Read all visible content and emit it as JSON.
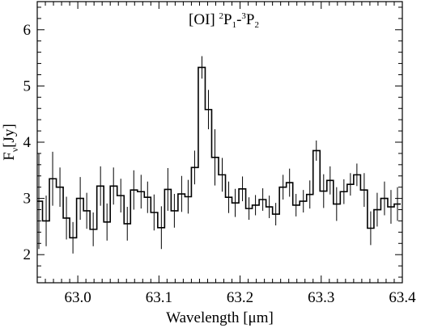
{
  "chart_data": {
    "type": "line",
    "style": "step-with-errorbars",
    "title": "",
    "xlabel": "Wavelength [μm]",
    "ylabel": "F",
    "ylabel_sub": "ν",
    "ylabel_unit": "[Jy]",
    "xlim": [
      62.95,
      63.4
    ],
    "ylim": [
      1.5,
      6.5
    ],
    "xticks": [
      63.0,
      63.1,
      63.2,
      63.3,
      63.4
    ],
    "xtick_labels": [
      "63.0",
      "63.1",
      "63.2",
      "63.3",
      "63.4"
    ],
    "yticks": [
      2,
      3,
      4,
      5,
      6
    ],
    "ytick_labels": [
      "2",
      "3",
      "4",
      "5",
      "6"
    ],
    "grid": false,
    "annotation": {
      "main": "[OI] ",
      "sup1": "2",
      "p1": "P",
      "sub1": "1",
      "dash": "-",
      "sup2": "3",
      "p2": "P",
      "sub2": "2",
      "x": 63.18,
      "y": 6.1
    },
    "series": [
      {
        "x": [
          62.952,
          62.961,
          62.969,
          62.978,
          62.986,
          62.994,
          63.003,
          63.011,
          63.019,
          63.028,
          63.036,
          63.044,
          63.053,
          63.061,
          63.069,
          63.078,
          63.086,
          63.094,
          63.103,
          63.111,
          63.119,
          63.128,
          63.136,
          63.144,
          63.153,
          63.161,
          63.169,
          63.178,
          63.186,
          63.194,
          63.203,
          63.211,
          63.219,
          63.228,
          63.236,
          63.244,
          63.253,
          63.261,
          63.269,
          63.278,
          63.286,
          63.294,
          63.303,
          63.311,
          63.319,
          63.328,
          63.336,
          63.344,
          63.353,
          63.361,
          63.369,
          63.378,
          63.386,
          63.394
        ],
        "y": [
          2.95,
          2.6,
          3.35,
          3.2,
          2.65,
          2.3,
          3.0,
          2.78,
          2.45,
          3.22,
          2.58,
          3.22,
          3.05,
          2.55,
          3.15,
          3.12,
          3.02,
          2.75,
          2.48,
          3.16,
          2.78,
          3.08,
          3.03,
          3.55,
          5.33,
          4.58,
          3.73,
          3.42,
          3.02,
          2.92,
          3.17,
          2.82,
          2.88,
          2.98,
          2.85,
          2.72,
          3.2,
          3.28,
          2.88,
          2.95,
          3.07,
          3.85,
          3.13,
          3.32,
          2.9,
          3.12,
          3.25,
          3.42,
          3.15,
          2.47,
          2.8,
          3.0,
          2.85,
          2.9
        ],
        "err": [
          0.85,
          0.45,
          0.48,
          0.35,
          0.38,
          0.28,
          0.38,
          0.32,
          0.3,
          0.35,
          0.33,
          0.33,
          0.3,
          0.3,
          0.35,
          0.3,
          0.28,
          0.32,
          0.38,
          0.38,
          0.3,
          0.32,
          0.3,
          0.3,
          0.2,
          0.35,
          0.5,
          0.3,
          0.28,
          0.25,
          0.22,
          0.2,
          0.18,
          0.2,
          0.2,
          0.2,
          0.22,
          0.25,
          0.2,
          0.2,
          0.25,
          0.18,
          0.3,
          0.25,
          0.3,
          0.22,
          0.2,
          0.2,
          0.3,
          0.3,
          0.3,
          0.3,
          0.3,
          0.3
        ]
      }
    ]
  }
}
